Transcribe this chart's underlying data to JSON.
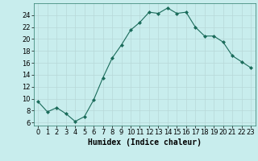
{
  "x": [
    0,
    1,
    2,
    3,
    4,
    5,
    6,
    7,
    8,
    9,
    10,
    11,
    12,
    13,
    14,
    15,
    16,
    17,
    18,
    19,
    20,
    21,
    22,
    23
  ],
  "y": [
    9.5,
    7.8,
    8.5,
    7.5,
    6.2,
    7.0,
    9.8,
    13.5,
    16.8,
    19.0,
    21.5,
    22.8,
    24.5,
    24.3,
    25.2,
    24.3,
    24.5,
    22.0,
    20.5,
    20.5,
    19.5,
    17.2,
    16.2,
    15.2
  ],
  "line_color": "#1a6b5a",
  "marker": "D",
  "marker_size": 2.0,
  "bg_color": "#c8eded",
  "grid_color": "#b8d8d8",
  "xlabel": "Humidex (Indice chaleur)",
  "xlim": [
    -0.5,
    23.5
  ],
  "ylim": [
    5.5,
    26
  ],
  "yticks": [
    6,
    8,
    10,
    12,
    14,
    16,
    18,
    20,
    22,
    24
  ],
  "xticks": [
    0,
    1,
    2,
    3,
    4,
    5,
    6,
    7,
    8,
    9,
    10,
    11,
    12,
    13,
    14,
    15,
    16,
    17,
    18,
    19,
    20,
    21,
    22,
    23
  ],
  "xlabel_fontsize": 7,
  "tick_fontsize": 6
}
